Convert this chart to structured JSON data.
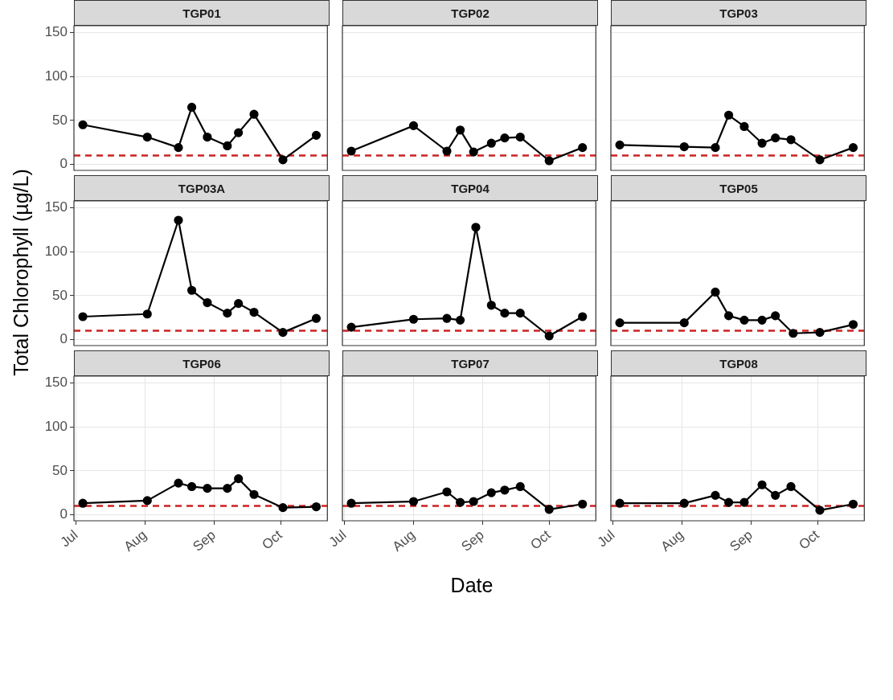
{
  "chart_data": [
    {
      "type": "line",
      "title": "TGP01",
      "x": [
        "--07-04",
        "--08-02",
        "--08-16",
        "--08-22",
        "--08-29",
        "--09-07",
        "--09-12",
        "--09-19",
        "--10-02",
        "--10-17"
      ],
      "series": [
        {
          "color": "#000000",
          "values": [
            45,
            31,
            19,
            65,
            31,
            21,
            36,
            57,
            5,
            33
          ]
        }
      ],
      "xlim": [
        "--06-30",
        "--10-22"
      ],
      "ylim": [
        -7,
        158
      ],
      "xticks": [
        {
          "value": "--07-01",
          "label": null
        },
        {
          "value": "--08-01",
          "label": null
        },
        {
          "value": "--09-01",
          "label": null
        },
        {
          "value": "--10-01",
          "label": null
        }
      ],
      "yticks": [
        0,
        50,
        100,
        150
      ],
      "grid": true,
      "marker": "circle",
      "tick_labels": "y",
      "ref_lines": [
        {
          "axis": "y",
          "value": 10,
          "color": "#cc2222",
          "line_style": "dashed"
        }
      ]
    },
    {
      "type": "line",
      "title": "TGP02",
      "x": [
        "--07-04",
        "--08-01",
        "--08-16",
        "--08-22",
        "--08-28",
        "--09-05",
        "--09-11",
        "--09-18",
        "--10-01",
        "--10-16"
      ],
      "series": [
        {
          "color": "#000000",
          "values": [
            15,
            44,
            15,
            39,
            14,
            24,
            30,
            31,
            4,
            19
          ]
        }
      ],
      "xlim": [
        "--06-30",
        "--10-22"
      ],
      "ylim": [
        -7,
        158
      ],
      "xticks": [
        {
          "value": "--07-01",
          "label": null
        },
        {
          "value": "--08-01",
          "label": null
        },
        {
          "value": "--09-01",
          "label": null
        },
        {
          "value": "--10-01",
          "label": null
        }
      ],
      "yticks": [
        0,
        50,
        100,
        150
      ],
      "grid": true,
      "marker": "circle",
      "tick_labels": false,
      "ref_lines": [
        {
          "axis": "y",
          "value": 10,
          "color": "#cc2222",
          "line_style": "dashed"
        }
      ]
    },
    {
      "type": "line",
      "title": "TGP03",
      "x": [
        "--07-04",
        "--08-02",
        "--08-16",
        "--08-22",
        "--08-29",
        "--09-06",
        "--09-12",
        "--09-19",
        "--10-02",
        "--10-17"
      ],
      "series": [
        {
          "color": "#000000",
          "values": [
            22,
            20,
            19,
            56,
            43,
            24,
            30,
            28,
            5,
            19
          ]
        }
      ],
      "xlim": [
        "--06-30",
        "--10-22"
      ],
      "ylim": [
        -7,
        158
      ],
      "xticks": [
        {
          "value": "--07-01",
          "label": null
        },
        {
          "value": "--08-01",
          "label": null
        },
        {
          "value": "--09-01",
          "label": null
        },
        {
          "value": "--10-01",
          "label": null
        }
      ],
      "yticks": [
        0,
        50,
        100,
        150
      ],
      "grid": true,
      "marker": "circle",
      "tick_labels": false,
      "ref_lines": [
        {
          "axis": "y",
          "value": 10,
          "color": "#cc2222",
          "line_style": "dashed"
        }
      ]
    },
    {
      "type": "line",
      "title": "TGP03A",
      "ylabel": "Total Chlorophyll (µg/L)",
      "x": [
        "--07-04",
        "--08-02",
        "--08-16",
        "--08-22",
        "--08-29",
        "--09-07",
        "--09-12",
        "--09-19",
        "--10-02",
        "--10-17"
      ],
      "series": [
        {
          "color": "#000000",
          "values": [
            26,
            29,
            136,
            56,
            42,
            30,
            41,
            31,
            8,
            24
          ]
        }
      ],
      "xlim": [
        "--06-30",
        "--10-22"
      ],
      "ylim": [
        -7,
        158
      ],
      "xticks": [
        {
          "value": "--07-01",
          "label": null
        },
        {
          "value": "--08-01",
          "label": null
        },
        {
          "value": "--09-01",
          "label": null
        },
        {
          "value": "--10-01",
          "label": null
        }
      ],
      "yticks": [
        0,
        50,
        100,
        150
      ],
      "grid": true,
      "marker": "circle",
      "tick_labels": "y",
      "ref_lines": [
        {
          "axis": "y",
          "value": 10,
          "color": "#cc2222",
          "line_style": "dashed"
        }
      ]
    },
    {
      "type": "line",
      "title": "TGP04",
      "x": [
        "--07-04",
        "--08-01",
        "--08-16",
        "--08-22",
        "--08-29",
        "--09-05",
        "--09-11",
        "--09-18",
        "--10-01",
        "--10-16"
      ],
      "series": [
        {
          "color": "#000000",
          "values": [
            14,
            23,
            24,
            22,
            128,
            39,
            30,
            30,
            4,
            26
          ]
        }
      ],
      "xlim": [
        "--06-30",
        "--10-22"
      ],
      "ylim": [
        -7,
        158
      ],
      "xticks": [
        {
          "value": "--07-01",
          "label": null
        },
        {
          "value": "--08-01",
          "label": null
        },
        {
          "value": "--09-01",
          "label": null
        },
        {
          "value": "--10-01",
          "label": null
        }
      ],
      "yticks": [
        0,
        50,
        100,
        150
      ],
      "grid": true,
      "marker": "circle",
      "tick_labels": false,
      "ref_lines": [
        {
          "axis": "y",
          "value": 10,
          "color": "#cc2222",
          "line_style": "dashed"
        }
      ]
    },
    {
      "type": "line",
      "title": "TGP05",
      "x": [
        "--07-04",
        "--08-02",
        "--08-16",
        "--08-22",
        "--08-29",
        "--09-06",
        "--09-12",
        "--09-20",
        "--10-02",
        "--10-17"
      ],
      "series": [
        {
          "color": "#000000",
          "values": [
            19,
            19,
            54,
            27,
            22,
            22,
            27,
            7,
            8,
            17
          ]
        }
      ],
      "xlim": [
        "--06-30",
        "--10-22"
      ],
      "ylim": [
        -7,
        158
      ],
      "xticks": [
        {
          "value": "--07-01",
          "label": null
        },
        {
          "value": "--08-01",
          "label": null
        },
        {
          "value": "--09-01",
          "label": null
        },
        {
          "value": "--10-01",
          "label": null
        }
      ],
      "yticks": [
        0,
        50,
        100,
        150
      ],
      "grid": true,
      "marker": "circle",
      "tick_labels": false,
      "ref_lines": [
        {
          "axis": "y",
          "value": 10,
          "color": "#cc2222",
          "line_style": "dashed"
        }
      ]
    },
    {
      "type": "line",
      "title": "TGP06",
      "x": [
        "--07-04",
        "--08-02",
        "--08-16",
        "--08-22",
        "--08-29",
        "--09-07",
        "--09-12",
        "--09-19",
        "--10-02",
        "--10-17"
      ],
      "series": [
        {
          "color": "#000000",
          "values": [
            13,
            16,
            36,
            32,
            30,
            30,
            41,
            23,
            8,
            9
          ]
        }
      ],
      "xlim": [
        "--06-30",
        "--10-22"
      ],
      "ylim": [
        -7,
        158
      ],
      "xticks": [
        {
          "value": "--07-01",
          "label": "Jul"
        },
        {
          "value": "--08-01",
          "label": "Aug"
        },
        {
          "value": "--09-01",
          "label": "Sep"
        },
        {
          "value": "--10-01",
          "label": "Oct"
        }
      ],
      "yticks": [
        0,
        50,
        100,
        150
      ],
      "grid": true,
      "marker": "circle",
      "ref_lines": [
        {
          "axis": "y",
          "value": 10,
          "color": "#cc2222",
          "line_style": "dashed"
        }
      ]
    },
    {
      "type": "line",
      "title": "TGP07",
      "xlabel": "Date",
      "x": [
        "--07-04",
        "--08-01",
        "--08-16",
        "--08-22",
        "--08-28",
        "--09-05",
        "--09-11",
        "--09-18",
        "--10-01",
        "--10-16"
      ],
      "series": [
        {
          "color": "#000000",
          "values": [
            13,
            15,
            26,
            14,
            15,
            25,
            28,
            32,
            6,
            12
          ]
        }
      ],
      "xlim": [
        "--06-30",
        "--10-22"
      ],
      "ylim": [
        -7,
        158
      ],
      "xticks": [
        {
          "value": "--07-01",
          "label": "Jul"
        },
        {
          "value": "--08-01",
          "label": "Aug"
        },
        {
          "value": "--09-01",
          "label": "Sep"
        },
        {
          "value": "--10-01",
          "label": "Oct"
        }
      ],
      "yticks": [
        0,
        50,
        100,
        150
      ],
      "grid": true,
      "marker": "circle",
      "tick_labels": "x",
      "ref_lines": [
        {
          "axis": "y",
          "value": 10,
          "color": "#cc2222",
          "line_style": "dashed"
        }
      ]
    },
    {
      "type": "line",
      "title": "TGP08",
      "x": [
        "--07-04",
        "--08-02",
        "--08-16",
        "--08-22",
        "--08-29",
        "--09-06",
        "--09-12",
        "--09-19",
        "--10-02",
        "--10-17"
      ],
      "series": [
        {
          "color": "#000000",
          "values": [
            13,
            13,
            22,
            14,
            14,
            34,
            22,
            32,
            5,
            12
          ]
        }
      ],
      "xlim": [
        "--06-30",
        "--10-22"
      ],
      "ylim": [
        -7,
        158
      ],
      "xticks": [
        {
          "value": "--07-01",
          "label": "Jul"
        },
        {
          "value": "--08-01",
          "label": "Aug"
        },
        {
          "value": "--09-01",
          "label": "Sep"
        },
        {
          "value": "--10-01",
          "label": "Oct"
        }
      ],
      "yticks": [
        0,
        50,
        100,
        150
      ],
      "grid": true,
      "marker": "circle",
      "tick_labels": "x",
      "ref_lines": [
        {
          "axis": "y",
          "value": 10,
          "color": "#cc2222",
          "line_style": "dashed"
        }
      ]
    }
  ]
}
